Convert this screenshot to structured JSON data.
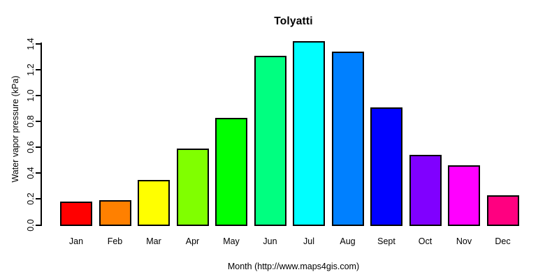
{
  "chart_data": {
    "type": "bar",
    "title": "Tolyatti",
    "xlabel": "Month (http://www.maps4gis.com)",
    "ylabel": "Water vapor pressure (kPa)",
    "categories": [
      "Jan",
      "Feb",
      "Mar",
      "Apr",
      "May",
      "Jun",
      "Jul",
      "Aug",
      "Sept",
      "Oct",
      "Nov",
      "Dec"
    ],
    "values": [
      0.18,
      0.19,
      0.35,
      0.59,
      0.83,
      1.31,
      1.42,
      1.34,
      0.91,
      0.54,
      0.46,
      0.23
    ],
    "bar_colors": [
      "#FF0000",
      "#FF8000",
      "#FFFF00",
      "#80FF00",
      "#00FF00",
      "#00FF80",
      "#00FFFF",
      "#0080FF",
      "#0000FF",
      "#8000FF",
      "#FF00FF",
      "#FF0080"
    ],
    "bar_border_color": "#000000",
    "y_ticks": [
      0.0,
      0.2,
      0.4,
      0.6,
      0.8,
      1.0,
      1.2,
      1.4
    ],
    "ylim": [
      0,
      1.4
    ],
    "grid": false,
    "legend": "none",
    "background": "#FFFFFF"
  }
}
